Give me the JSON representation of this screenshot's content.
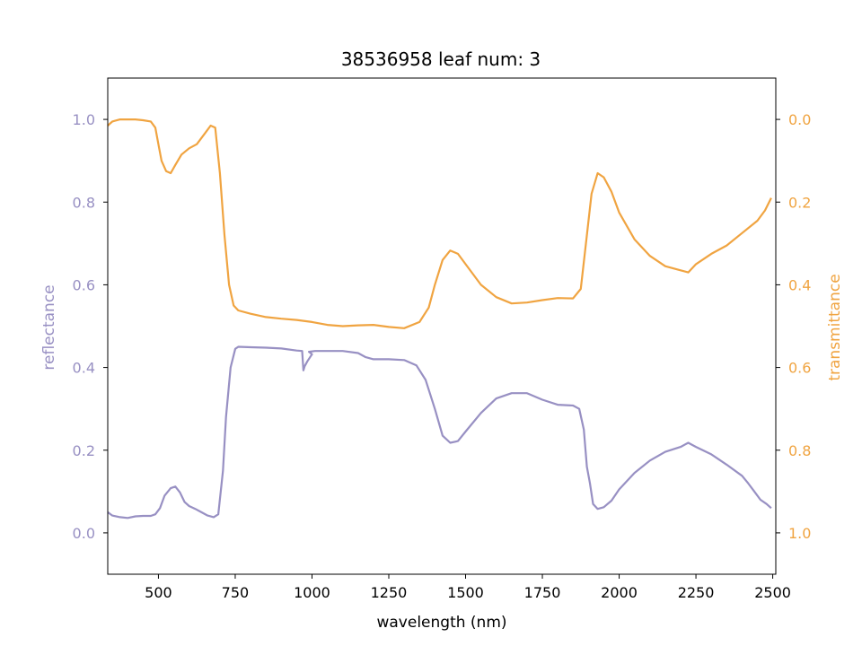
{
  "chart_data": {
    "type": "line",
    "title": "38536958 leaf num: 3",
    "xlabel": "wavelength (nm)",
    "ylabel_left": "reflectance",
    "ylabel_right": "transmittance",
    "xlim": [
      335,
      2510
    ],
    "ylim_left": [
      -0.1,
      1.1
    ],
    "ylim_right": [
      1.1,
      -0.1
    ],
    "x_ticks": [
      500,
      750,
      1000,
      1250,
      1500,
      1750,
      2000,
      2250,
      2500
    ],
    "y_ticks_left": [
      0.0,
      0.2,
      0.4,
      0.6,
      0.8,
      1.0
    ],
    "y_ticks_right": [
      0.0,
      0.2,
      0.4,
      0.6,
      0.8,
      1.0
    ],
    "x_tick_labels": [
      "500",
      "750",
      "1000",
      "1250",
      "1500",
      "1750",
      "2000",
      "2250",
      "2500"
    ],
    "y_tick_labels_left": [
      "0.0",
      "0.2",
      "0.4",
      "0.6",
      "0.8",
      "1.0"
    ],
    "y_tick_labels_right": [
      "0.0",
      "0.2",
      "0.4",
      "0.6",
      "0.8",
      "1.0"
    ],
    "grid": false,
    "colors": {
      "reflectance": "#9890c3",
      "transmittance": "#f0a441",
      "axis": "#000000"
    },
    "series": [
      {
        "axis": "left",
        "color": "#9890c3",
        "points": [
          [
            335,
            0.05
          ],
          [
            350,
            0.042
          ],
          [
            375,
            0.038
          ],
          [
            400,
            0.036
          ],
          [
            425,
            0.04
          ],
          [
            450,
            0.041
          ],
          [
            475,
            0.041
          ],
          [
            490,
            0.045
          ],
          [
            505,
            0.06
          ],
          [
            520,
            0.09
          ],
          [
            540,
            0.108
          ],
          [
            555,
            0.112
          ],
          [
            570,
            0.098
          ],
          [
            585,
            0.075
          ],
          [
            600,
            0.065
          ],
          [
            620,
            0.058
          ],
          [
            640,
            0.05
          ],
          [
            660,
            0.042
          ],
          [
            680,
            0.038
          ],
          [
            695,
            0.045
          ],
          [
            710,
            0.15
          ],
          [
            720,
            0.28
          ],
          [
            735,
            0.4
          ],
          [
            750,
            0.445
          ],
          [
            760,
            0.45
          ],
          [
            800,
            0.449
          ],
          [
            850,
            0.448
          ],
          [
            900,
            0.446
          ],
          [
            950,
            0.441
          ],
          [
            968,
            0.44
          ],
          [
            972,
            0.393
          ],
          [
            976,
            0.403
          ],
          [
            985,
            0.415
          ],
          [
            1000,
            0.432
          ],
          [
            990,
            0.438
          ],
          [
            1010,
            0.44
          ],
          [
            1050,
            0.44
          ],
          [
            1100,
            0.44
          ],
          [
            1150,
            0.435
          ],
          [
            1175,
            0.425
          ],
          [
            1200,
            0.42
          ],
          [
            1250,
            0.42
          ],
          [
            1300,
            0.418
          ],
          [
            1340,
            0.405
          ],
          [
            1370,
            0.37
          ],
          [
            1400,
            0.3
          ],
          [
            1425,
            0.235
          ],
          [
            1450,
            0.218
          ],
          [
            1475,
            0.222
          ],
          [
            1500,
            0.245
          ],
          [
            1550,
            0.29
          ],
          [
            1600,
            0.325
          ],
          [
            1650,
            0.338
          ],
          [
            1700,
            0.338
          ],
          [
            1750,
            0.322
          ],
          [
            1800,
            0.31
          ],
          [
            1850,
            0.308
          ],
          [
            1870,
            0.3
          ],
          [
            1885,
            0.25
          ],
          [
            1895,
            0.16
          ],
          [
            1905,
            0.12
          ],
          [
            1915,
            0.07
          ],
          [
            1930,
            0.058
          ],
          [
            1950,
            0.062
          ],
          [
            1975,
            0.078
          ],
          [
            2000,
            0.105
          ],
          [
            2050,
            0.145
          ],
          [
            2100,
            0.175
          ],
          [
            2150,
            0.196
          ],
          [
            2200,
            0.208
          ],
          [
            2225,
            0.218
          ],
          [
            2250,
            0.208
          ],
          [
            2300,
            0.19
          ],
          [
            2350,
            0.165
          ],
          [
            2400,
            0.138
          ],
          [
            2420,
            0.12
          ],
          [
            2440,
            0.1
          ],
          [
            2460,
            0.08
          ],
          [
            2480,
            0.07
          ],
          [
            2495,
            0.06
          ]
        ]
      },
      {
        "axis": "right",
        "color": "#f0a441",
        "points": [
          [
            335,
            0.015
          ],
          [
            350,
            0.005
          ],
          [
            375,
            0.0
          ],
          [
            400,
            0.0
          ],
          [
            425,
            0.0
          ],
          [
            450,
            0.002
          ],
          [
            475,
            0.005
          ],
          [
            490,
            0.02
          ],
          [
            500,
            0.06
          ],
          [
            510,
            0.1
          ],
          [
            525,
            0.125
          ],
          [
            540,
            0.13
          ],
          [
            555,
            0.11
          ],
          [
            575,
            0.085
          ],
          [
            600,
            0.07
          ],
          [
            625,
            0.06
          ],
          [
            650,
            0.035
          ],
          [
            670,
            0.015
          ],
          [
            685,
            0.02
          ],
          [
            700,
            0.13
          ],
          [
            715,
            0.28
          ],
          [
            730,
            0.4
          ],
          [
            745,
            0.45
          ],
          [
            760,
            0.462
          ],
          [
            800,
            0.47
          ],
          [
            850,
            0.478
          ],
          [
            900,
            0.482
          ],
          [
            950,
            0.485
          ],
          [
            1000,
            0.49
          ],
          [
            1050,
            0.497
          ],
          [
            1100,
            0.5
          ],
          [
            1150,
            0.498
          ],
          [
            1200,
            0.497
          ],
          [
            1250,
            0.502
          ],
          [
            1300,
            0.505
          ],
          [
            1350,
            0.49
          ],
          [
            1380,
            0.455
          ],
          [
            1400,
            0.4
          ],
          [
            1425,
            0.34
          ],
          [
            1450,
            0.317
          ],
          [
            1475,
            0.325
          ],
          [
            1500,
            0.35
          ],
          [
            1550,
            0.4
          ],
          [
            1600,
            0.43
          ],
          [
            1650,
            0.445
          ],
          [
            1700,
            0.443
          ],
          [
            1750,
            0.437
          ],
          [
            1800,
            0.432
          ],
          [
            1850,
            0.433
          ],
          [
            1875,
            0.41
          ],
          [
            1895,
            0.28
          ],
          [
            1910,
            0.18
          ],
          [
            1930,
            0.13
          ],
          [
            1950,
            0.14
          ],
          [
            1975,
            0.175
          ],
          [
            2000,
            0.225
          ],
          [
            2050,
            0.29
          ],
          [
            2100,
            0.33
          ],
          [
            2150,
            0.355
          ],
          [
            2200,
            0.365
          ],
          [
            2225,
            0.37
          ],
          [
            2250,
            0.35
          ],
          [
            2300,
            0.325
          ],
          [
            2350,
            0.305
          ],
          [
            2400,
            0.275
          ],
          [
            2450,
            0.245
          ],
          [
            2475,
            0.22
          ],
          [
            2495,
            0.19
          ]
        ]
      }
    ]
  }
}
